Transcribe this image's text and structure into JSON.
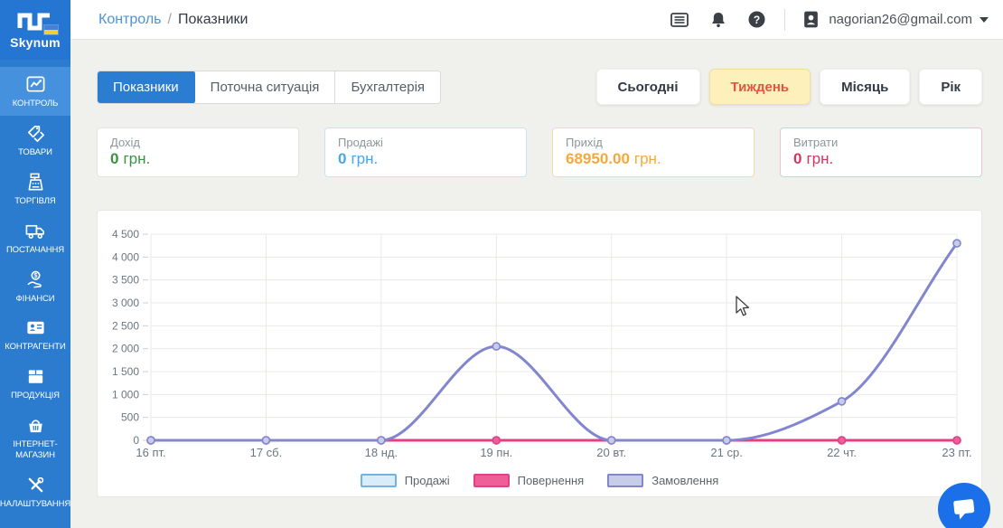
{
  "sidebar": {
    "logo_text": "Skynum",
    "items": [
      {
        "label": "КОНТРОЛЬ",
        "icon": "chart-line-icon",
        "active": true
      },
      {
        "label": "ТОВАРИ",
        "icon": "tags-icon",
        "active": false
      },
      {
        "label": "ТОРГІВЛЯ",
        "icon": "cash-register-icon",
        "active": false
      },
      {
        "label": "ПОСТАЧАННЯ",
        "icon": "delivery-truck-icon",
        "active": false
      },
      {
        "label": "ФІНАНСИ",
        "icon": "hand-coin-icon",
        "active": false
      },
      {
        "label": "КОНТРАГЕНТИ",
        "icon": "id-card-icon",
        "active": false
      },
      {
        "label": "ПРОДУКЦІЯ",
        "icon": "box-icon",
        "active": false
      },
      {
        "label": "ІНТЕРНЕТ-МАГАЗИН",
        "icon": "basket-icon",
        "active": false
      },
      {
        "label": "НАЛАШТУВАННЯ",
        "icon": "tools-icon",
        "active": false
      }
    ]
  },
  "header": {
    "breadcrumb": {
      "parent": "Контроль",
      "separator": "/",
      "current": "Показники"
    },
    "user_email": "nagorian26@gmail.com"
  },
  "tabs": [
    {
      "label": "Показники",
      "active": true
    },
    {
      "label": "Поточна ситуація",
      "active": false
    },
    {
      "label": "Бухгалтерія",
      "active": false
    }
  ],
  "period_buttons": [
    {
      "label": "Сьогодні",
      "active": false
    },
    {
      "label": "Тиждень",
      "active": true
    },
    {
      "label": "Місяць",
      "active": false
    },
    {
      "label": "Рік",
      "active": false
    }
  ],
  "stat_cards": [
    {
      "label": "Дохід",
      "value": "0",
      "unit": "грн.",
      "value_color": "#3a9144",
      "border_color": "#e2e6da"
    },
    {
      "label": "Продажі",
      "value": "0",
      "unit": "грн.",
      "value_color": "#45a7e8",
      "border_color": "#c6e5f4"
    },
    {
      "label": "Прихід",
      "value": "68950.00",
      "unit": "грн.",
      "value_color": "#f6a93b",
      "border_color": "#f1dd9f"
    },
    {
      "label": "Витрати",
      "value": "0",
      "unit": "грн.",
      "value_color": "#d2355f",
      "border_color": "#ecc3cf"
    }
  ],
  "chart_data": {
    "type": "line",
    "categories": [
      "16 пт.",
      "17 сб.",
      "18 нд.",
      "19 пн.",
      "20 вт.",
      "21 ср.",
      "22 чт.",
      "23 пт."
    ],
    "series": [
      {
        "name": "Продажі",
        "values": [
          0,
          0,
          0,
          0,
          0,
          0,
          0,
          0
        ],
        "line_color": "#6fb3e8",
        "fill_color": "#d9ecfa"
      },
      {
        "name": "Повернення",
        "values": [
          0,
          0,
          0,
          0,
          0,
          0,
          0,
          0
        ],
        "line_color": "#e23f86",
        "fill_color": "#ee5f97"
      },
      {
        "name": "Замовлення",
        "values": [
          0,
          0,
          0,
          2050,
          0,
          0,
          850,
          4300
        ],
        "line_color": "#8186ce",
        "fill_color": "#c9cce9"
      }
    ],
    "ylim": [
      0,
      4500
    ],
    "y_step": 500,
    "grid": true,
    "legend_position": "bottom",
    "curve": "monotone"
  },
  "colors": {
    "sidebar_bg": "#2b7ccf",
    "sidebar_active_bg": "#4691de",
    "tab_active_bg": "#2a7dd1",
    "period_active_bg": "#fdf0bb",
    "period_active_text": "#e0563f",
    "chat_fab_bg": "#1b6fe8",
    "grid_line": "#e9e9e4",
    "axis_text": "#6b7680"
  }
}
